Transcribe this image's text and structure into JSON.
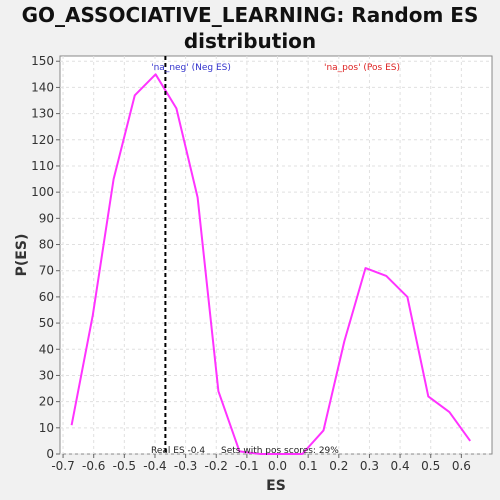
{
  "title_lines": [
    "GO_ASSOCIATIVE_LEARNING: Random ES",
    "distribution"
  ],
  "chart_data": {
    "type": "line",
    "title": "GO_ASSOCIATIVE_LEARNING: Random ES distribution",
    "xlabel": "ES",
    "ylabel": "P(ES)",
    "xlim": [
      -0.71,
      0.7
    ],
    "ylim": [
      0,
      152
    ],
    "xticks": [
      -0.7,
      -0.6,
      -0.5,
      -0.4,
      -0.3,
      -0.2,
      -0.1,
      0.0,
      0.1,
      0.2,
      0.3,
      0.4,
      0.5,
      0.6
    ],
    "xtick_labels": [
      "-0.7",
      "-0.6",
      "-0.5",
      "-0.4",
      "-0.3",
      "-0.2",
      "-0.1",
      "0.0",
      "0.1",
      "0.2",
      "0.3",
      "0.4",
      "0.5",
      "0.6"
    ],
    "yticks": [
      0,
      10,
      20,
      30,
      40,
      50,
      60,
      70,
      80,
      90,
      100,
      110,
      120,
      130,
      140,
      150
    ],
    "ytick_labels": [
      "0",
      "10",
      "20",
      "30",
      "40",
      "50",
      "60",
      "70",
      "80",
      "90",
      "100",
      "110",
      "120",
      "130",
      "140",
      "150"
    ],
    "grid": true,
    "series": [
      {
        "color": "#ff33ff",
        "x": [
          -0.672,
          -0.603,
          -0.535,
          -0.466,
          -0.398,
          -0.33,
          -0.261,
          -0.193,
          -0.124,
          -0.056,
          0.013,
          0.081,
          0.15,
          0.218,
          0.287,
          0.355,
          0.424,
          0.492,
          0.561,
          0.629
        ],
        "y": [
          11,
          53,
          105,
          137,
          145,
          132,
          98,
          24,
          1,
          0,
          0,
          0,
          9,
          43,
          71,
          68,
          60,
          22,
          16,
          5
        ]
      }
    ],
    "real_es": {
      "x": -0.366,
      "label": "Real ES -0.4",
      "color": "#000000"
    },
    "annotations": {
      "neg_label": "'na_neg' (Neg ES)",
      "neg_color": "#3333cc",
      "pos_label": "'na_pos' (Pos ES)",
      "pos_color": "#dd2222",
      "pos_scores_label": "Sets with pos scores: 29%"
    }
  }
}
